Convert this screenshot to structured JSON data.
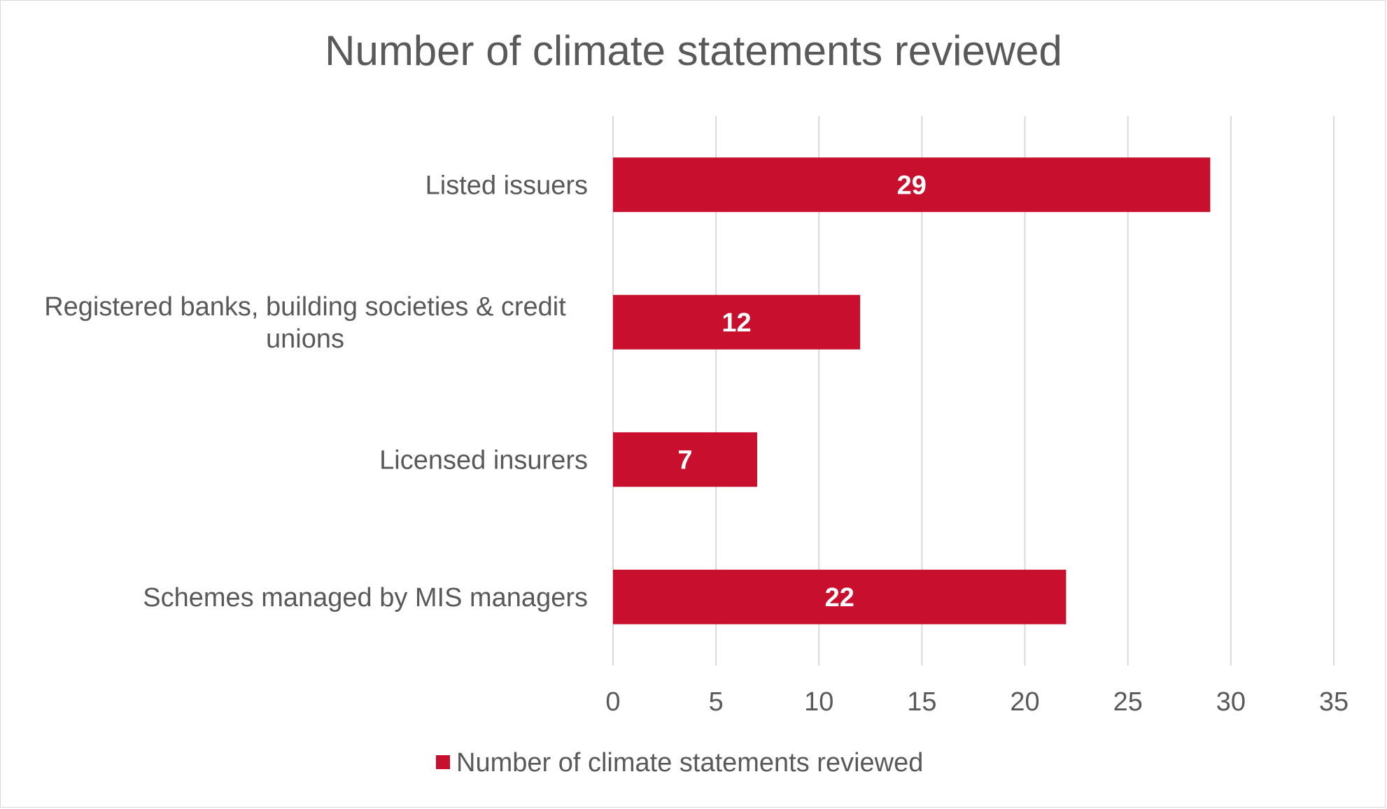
{
  "chart_data": {
    "type": "bar",
    "orientation": "horizontal",
    "title": "Number of climate statements reviewed",
    "categories": [
      [
        "Listed issuers"
      ],
      [
        "Registered banks, building societies & credit",
        "unions"
      ],
      [
        "Licensed insurers"
      ],
      [
        "Schemes managed by MIS managers"
      ]
    ],
    "series": [
      {
        "name": "Number of climate statements reviewed",
        "values": [
          29,
          12,
          7,
          22
        ],
        "color": "#c8102e"
      }
    ],
    "data_labels": [
      "29",
      "12",
      "7",
      "22"
    ],
    "xlim": [
      0,
      35
    ],
    "xticks": [
      "0",
      "5",
      "10",
      "15",
      "20",
      "25",
      "30",
      "35"
    ],
    "grid": "vertical",
    "legend": "bottom-center",
    "colors": {
      "bar": "#c8102e",
      "grid": "#d9d9d9",
      "text": "#595959"
    }
  }
}
